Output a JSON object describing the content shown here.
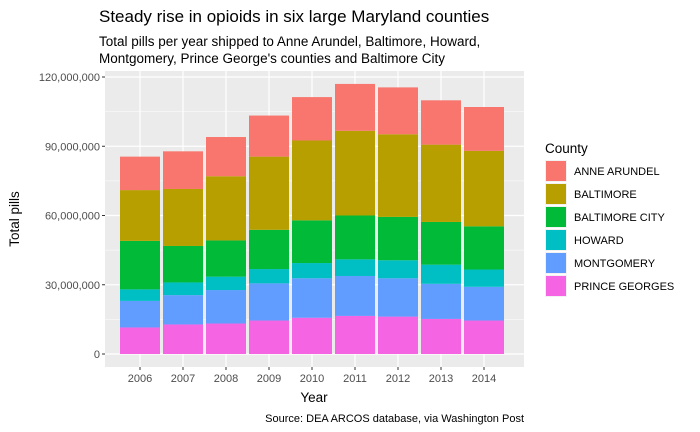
{
  "chart_data": {
    "type": "bar",
    "stacked": true,
    "title": "Steady rise in opioids in six large Maryland counties",
    "subtitle_lines": [
      "Total pills per year shipped to Anne Arundel, Baltimore, Howard,",
      "Montgomery, Prince George's counties and Baltimore City"
    ],
    "xlabel": "Year",
    "ylabel": "Total pills",
    "caption": "Source: DEA ARCOS database, via Washington Post",
    "categories": [
      "2006",
      "2007",
      "2008",
      "2009",
      "2010",
      "2011",
      "2012",
      "2013",
      "2014"
    ],
    "ylim": [
      0,
      120000000
    ],
    "yticks": [
      {
        "value": 0,
        "label": "0"
      },
      {
        "value": 30000000,
        "label": "30,000,000"
      },
      {
        "value": 60000000,
        "label": "60,000,000"
      },
      {
        "value": 90000000,
        "label": "90,000,000"
      },
      {
        "value": 120000000,
        "label": "120,000,000"
      }
    ],
    "grid": true,
    "legend": {
      "title": "County",
      "position": "right"
    },
    "series": [
      {
        "name": "PRINCE GEORGES",
        "color": "#F564E3",
        "values": [
          11500000,
          12800000,
          13200000,
          14500000,
          15700000,
          16500000,
          16200000,
          15200000,
          14500000
        ]
      },
      {
        "name": "MONTGOMERY",
        "color": "#619CFF",
        "values": [
          11500000,
          12700000,
          14500000,
          16100000,
          17100000,
          17300000,
          16600000,
          15200000,
          14600000
        ]
      },
      {
        "name": "HOWARD",
        "color": "#00BFC4",
        "values": [
          5000000,
          5500000,
          5800000,
          6200000,
          6600000,
          7200000,
          7800000,
          8300000,
          7500000
        ]
      },
      {
        "name": "BALTIMORE CITY",
        "color": "#00BA38",
        "values": [
          21000000,
          15800000,
          15700000,
          17000000,
          18500000,
          19000000,
          18800000,
          18500000,
          18700000
        ]
      },
      {
        "name": "BALTIMORE",
        "color": "#B79F00",
        "values": [
          22000000,
          24700000,
          27800000,
          31700000,
          34600000,
          36700000,
          35800000,
          33500000,
          32700000
        ]
      },
      {
        "name": "ANNE ARUNDEL",
        "color": "#F8766D",
        "values": [
          14500000,
          16300000,
          17000000,
          17800000,
          18800000,
          20300000,
          20300000,
          19200000,
          19000000
        ]
      }
    ],
    "legend_order": [
      "ANNE ARUNDEL",
      "BALTIMORE",
      "BALTIMORE CITY",
      "HOWARD",
      "MONTGOMERY",
      "PRINCE GEORGES"
    ]
  }
}
